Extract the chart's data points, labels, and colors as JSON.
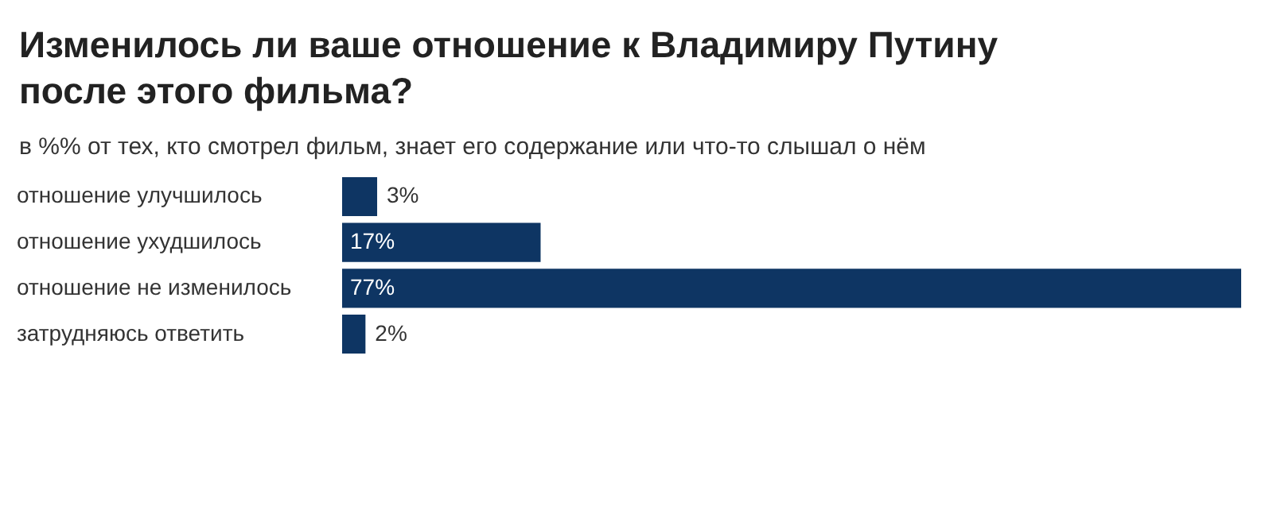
{
  "chart_data": {
    "type": "bar",
    "orientation": "horizontal",
    "title": "Изменилось ли ваше отношение к Владимиру Путину после этого фильма?",
    "subtitle": "в %% от тех, кто смотрел фильм, знает его содержание или что-то слышал о нём",
    "categories": [
      "отношение улучшилось",
      "отношение ухудшилось",
      "отношение не изменилось",
      "затрудняюсь ответить"
    ],
    "values": [
      3,
      17,
      77,
      2
    ],
    "value_labels": [
      "3%",
      "17%",
      "77%",
      "2%"
    ],
    "color": "#0e3563"
  }
}
